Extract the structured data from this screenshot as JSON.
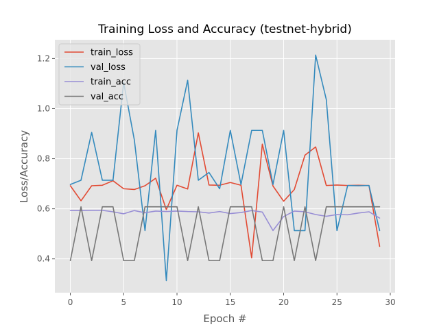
{
  "chart_data": {
    "type": "line",
    "title": "Training Loss and Accuracy (testnet-hybrid)",
    "xlabel": "Epoch #",
    "ylabel": "Loss/Accuracy",
    "xlim": [
      -1.45,
      30.45
    ],
    "ylim": [
      0.265,
      1.275
    ],
    "xticks": [
      0,
      5,
      10,
      15,
      20,
      25,
      30
    ],
    "yticks": [
      0.4,
      0.6,
      0.8,
      1.0,
      1.2
    ],
    "xtick_labels": [
      "0",
      "5",
      "10",
      "15",
      "20",
      "25",
      "30"
    ],
    "ytick_labels": [
      "0.4",
      "0.6",
      "0.8",
      "1.0",
      "1.2"
    ],
    "grid": true,
    "legend_position": "top-left",
    "x": [
      0,
      1,
      2,
      3,
      4,
      5,
      6,
      7,
      8,
      9,
      10,
      11,
      12,
      13,
      14,
      15,
      16,
      17,
      18,
      19,
      20,
      21,
      22,
      23,
      24,
      25,
      26,
      27,
      28,
      29
    ],
    "series": [
      {
        "name": "train_loss",
        "color": "#E24A33",
        "values": [
          0.692,
          0.632,
          0.692,
          0.694,
          0.712,
          0.68,
          0.677,
          0.692,
          0.722,
          0.597,
          0.694,
          0.679,
          0.903,
          0.695,
          0.694,
          0.705,
          0.694,
          0.404,
          0.858,
          0.691,
          0.63,
          0.677,
          0.814,
          0.847,
          0.693,
          0.695,
          0.693,
          0.694,
          0.693,
          0.45
        ]
      },
      {
        "name": "val_loss",
        "color": "#348ABD",
        "values": [
          0.697,
          0.714,
          0.905,
          0.714,
          0.714,
          1.104,
          0.875,
          0.513,
          0.913,
          0.313,
          0.913,
          1.113,
          0.714,
          0.745,
          0.68,
          0.913,
          0.697,
          0.913,
          0.913,
          0.697,
          0.913,
          0.513,
          0.513,
          1.214,
          1.036,
          0.513,
          0.693,
          0.692,
          0.693,
          0.513
        ]
      },
      {
        "name": "train_acc",
        "color": "#988ED5",
        "values": [
          0.593,
          0.593,
          0.594,
          0.594,
          0.588,
          0.58,
          0.593,
          0.584,
          0.591,
          0.589,
          0.591,
          0.589,
          0.588,
          0.583,
          0.589,
          0.581,
          0.585,
          0.593,
          0.587,
          0.513,
          0.569,
          0.591,
          0.588,
          0.577,
          0.57,
          0.577,
          0.576,
          0.583,
          0.588,
          0.563
        ]
      },
      {
        "name": "val_acc",
        "color": "#777777",
        "values": [
          0.393,
          0.608,
          0.393,
          0.608,
          0.608,
          0.393,
          0.393,
          0.608,
          0.608,
          0.608,
          0.608,
          0.393,
          0.608,
          0.393,
          0.393,
          0.608,
          0.608,
          0.608,
          0.393,
          0.393,
          0.608,
          0.393,
          0.608,
          0.393,
          0.608,
          0.608,
          0.608,
          0.608,
          0.608,
          0.608
        ]
      }
    ]
  }
}
